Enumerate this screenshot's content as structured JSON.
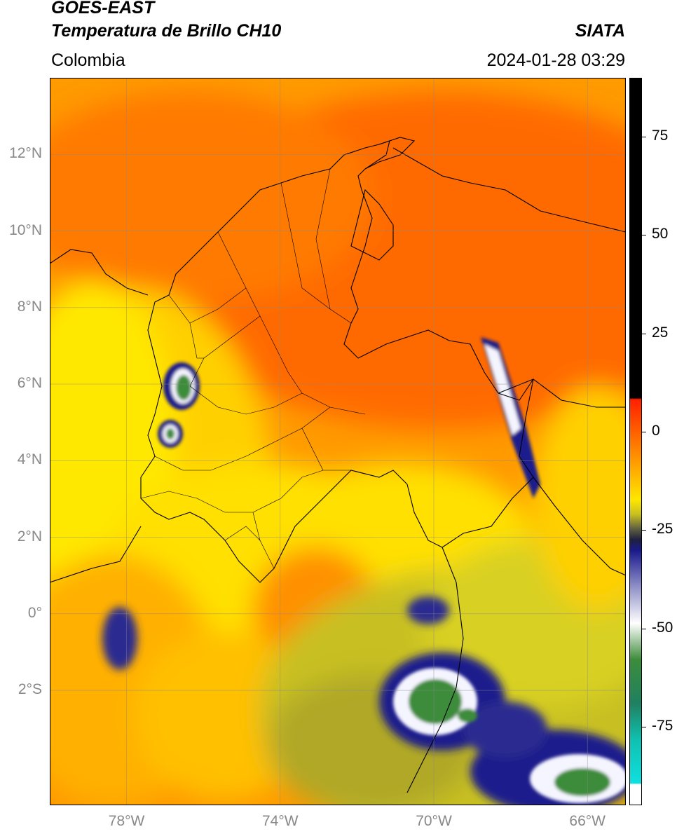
{
  "header": {
    "satellite": "GOES-EAST",
    "product": "Temperatura de Brillo CH10",
    "region": "Colombia",
    "agency": "SIATA",
    "datetime": "2024-01-28 03:29"
  },
  "axes": {
    "lat_labels": [
      "12°N",
      "10°N",
      "8°N",
      "6°N",
      "4°N",
      "2°N",
      "0°",
      "2°S"
    ],
    "lon_labels": [
      "78°W",
      "74°W",
      "70°W",
      "66°W"
    ],
    "lat_range": [
      -5,
      14
    ],
    "lon_range": [
      -80,
      -65
    ]
  },
  "colorbar": {
    "labels": [
      "75",
      "50",
      "25",
      "0",
      "-25",
      "-50",
      "-75"
    ],
    "values": [
      75,
      50,
      25,
      0,
      -25,
      -50,
      -75
    ],
    "range": [
      -95,
      90
    ]
  },
  "colors": {
    "warm_ocean": "#ff6a00",
    "orange": "#ff9000",
    "yellow": "#ffe600",
    "olive": "#b8b020",
    "navy": "#1a1a8c",
    "white": "#f5f5ff",
    "green": "#3d8c3a",
    "cyan": "#10e0e0",
    "red": "#ff2000",
    "black": "#000000"
  }
}
